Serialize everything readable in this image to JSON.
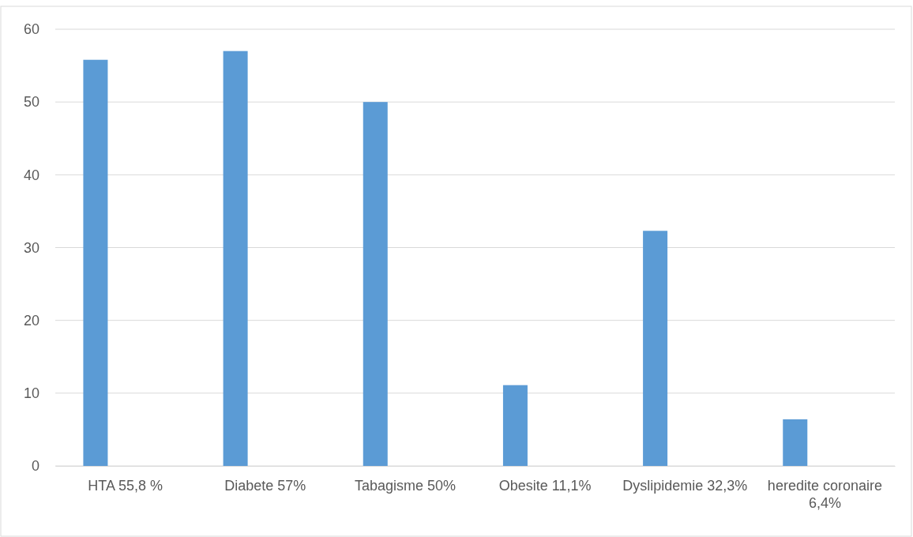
{
  "chart_data": {
    "type": "bar",
    "categories": [
      "HTA 55,8 %",
      "Diabete 57%",
      "Tabagisme 50%",
      "Obesite 11,1%",
      "Dyslipidemie 32,3%",
      "heredite coronaire 6,4%"
    ],
    "values": [
      55.8,
      57,
      50,
      11.1,
      32.3,
      6.4
    ],
    "color": "#5b9bd5",
    "ylim": [
      0,
      60
    ],
    "yticks": [
      0,
      10,
      20,
      30,
      40,
      50,
      60
    ],
    "grid": "y"
  }
}
